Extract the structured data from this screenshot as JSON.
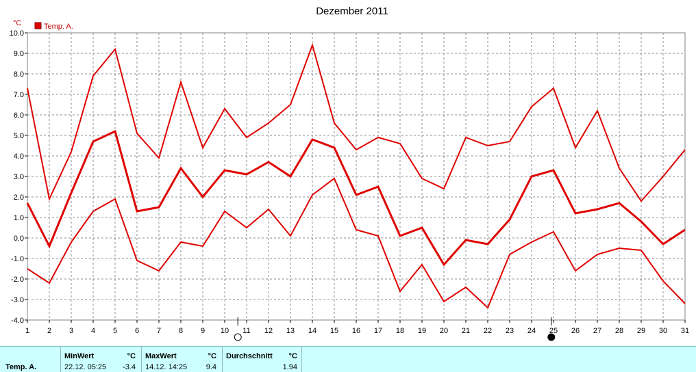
{
  "chart_data": {
    "type": "line",
    "title": "Dezember 2011",
    "ylabel": "°C",
    "ylim": [
      -4.0,
      10.0
    ],
    "ytick_labels": [
      "-4.0",
      "-3.0",
      "-2.0",
      "-1.0",
      "0.0",
      "1.0",
      "2.0",
      "3.0",
      "4.0",
      "5.0",
      "6.0",
      "7.0",
      "8.0",
      "9.0",
      "10.0"
    ],
    "x": [
      1,
      2,
      3,
      4,
      5,
      6,
      7,
      8,
      9,
      10,
      11,
      12,
      13,
      14,
      15,
      16,
      17,
      18,
      19,
      20,
      21,
      22,
      23,
      24,
      25,
      26,
      27,
      28,
      29,
      30,
      31
    ],
    "legend": "Temp. A.",
    "legend_position": "top-left",
    "grid": true,
    "color": "#e00000",
    "series": [
      {
        "role": "max",
        "values": [
          7.3,
          1.9,
          4.2,
          7.9,
          9.2,
          5.1,
          3.9,
          7.6,
          4.4,
          6.3,
          4.9,
          5.6,
          6.5,
          9.4,
          5.6,
          4.3,
          4.9,
          4.6,
          2.9,
          2.4,
          4.9,
          4.5,
          4.7,
          6.4,
          7.3,
          4.4,
          6.2,
          3.4,
          1.8,
          3.0,
          4.3
        ]
      },
      {
        "role": "mean",
        "values": [
          1.7,
          -0.4,
          2.2,
          4.7,
          5.2,
          1.3,
          1.5,
          3.4,
          2.0,
          3.3,
          3.1,
          3.7,
          3.0,
          4.8,
          4.4,
          2.1,
          2.5,
          0.1,
          0.5,
          -1.3,
          -0.1,
          -0.3,
          0.9,
          3.0,
          3.3,
          1.2,
          1.4,
          1.7,
          0.8,
          -0.3,
          0.4
        ]
      },
      {
        "role": "min",
        "values": [
          -1.5,
          -2.2,
          -0.2,
          1.3,
          1.9,
          -1.1,
          -1.6,
          -0.2,
          -0.4,
          1.3,
          0.5,
          1.4,
          0.1,
          2.1,
          2.9,
          0.4,
          0.1,
          -2.6,
          -1.3,
          -3.1,
          -2.4,
          -3.4,
          -0.8,
          -0.2,
          0.3,
          -1.6,
          -0.8,
          -0.5,
          -0.6,
          -2.1,
          -3.2
        ]
      }
    ],
    "moon_markers": [
      {
        "x": 10.6,
        "phase": "full-moon-icon"
      },
      {
        "x": 24.9,
        "phase": "new-moon-icon"
      }
    ]
  },
  "stats": {
    "row_label": "Temp. A.",
    "min": {
      "header": "MinWert",
      "unit": "°C",
      "datetime": "22.12.  05:25",
      "value": "-3.4"
    },
    "max": {
      "header": "MaxWert",
      "unit": "°C",
      "datetime": "14.12.  14:25",
      "value": "9.4"
    },
    "avg": {
      "header": "Durchschnitt",
      "unit": "°C",
      "value": "1.94"
    }
  }
}
